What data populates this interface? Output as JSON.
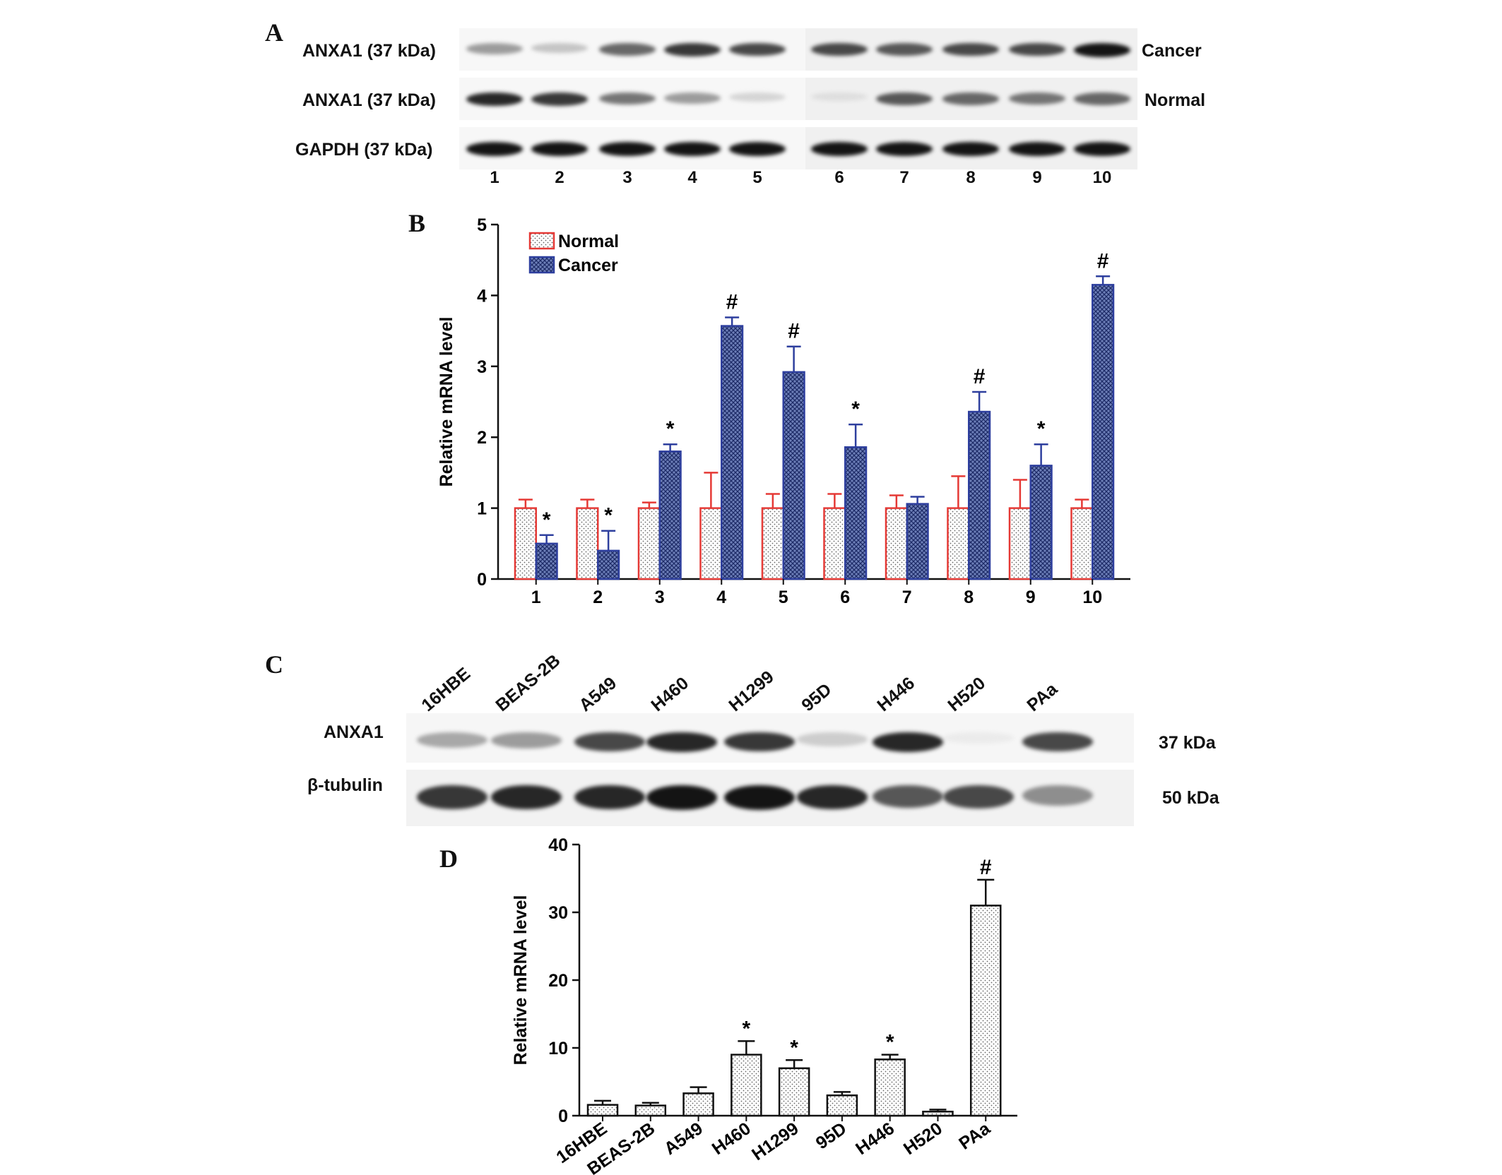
{
  "panelA": {
    "letter": "A",
    "rows": [
      {
        "label": "ANXA1 (37 kDa)",
        "side": "Cancer",
        "intensity": [
          0.55,
          0.35,
          0.75,
          0.9,
          0.85,
          0.85,
          0.8,
          0.85,
          0.85,
          1.0
        ]
      },
      {
        "label": "ANXA1 (37 kDa)",
        "side": "Normal",
        "intensity": [
          0.95,
          0.9,
          0.7,
          0.55,
          0.25,
          0.15,
          0.8,
          0.75,
          0.7,
          0.75
        ]
      },
      {
        "label": "GAPDH (37 kDa)",
        "side": "",
        "intensity": [
          1.0,
          1.0,
          1.0,
          1.0,
          1.0,
          1.0,
          1.0,
          1.0,
          1.0,
          1.0
        ]
      }
    ],
    "lanes": [
      "1",
      "2",
      "3",
      "4",
      "5",
      "6",
      "7",
      "8",
      "9",
      "10"
    ]
  },
  "panelC": {
    "letter": "C",
    "cell_lines": [
      "16HBE",
      "BEAS-2B",
      "A549",
      "H460",
      "H1299",
      "95D",
      "H446",
      "H520",
      "PAa"
    ],
    "rows": [
      {
        "label": "ANXA1",
        "kda": "37 kDa",
        "intensity": [
          0.5,
          0.55,
          0.85,
          0.95,
          0.9,
          0.3,
          0.95,
          0.05,
          0.85
        ]
      },
      {
        "label": "β-tubulin",
        "kda": "50 kDa",
        "intensity": [
          0.9,
          0.95,
          0.95,
          1.0,
          1.0,
          0.95,
          0.8,
          0.85,
          0.6
        ]
      }
    ]
  },
  "chart_data": [
    {
      "panel": "B",
      "type": "bar",
      "categories": [
        "1",
        "2",
        "3",
        "4",
        "5",
        "6",
        "7",
        "8",
        "9",
        "10"
      ],
      "series": [
        {
          "name": "Normal",
          "values": [
            1,
            1,
            1,
            1,
            1,
            1,
            1,
            1,
            1,
            1
          ],
          "errors": [
            0.12,
            0.12,
            0.08,
            0.5,
            0.2,
            0.2,
            0.18,
            0.45,
            0.4,
            0.12
          ],
          "color": "#e53935",
          "pattern": "dots"
        },
        {
          "name": "Cancer",
          "values": [
            0.5,
            0.4,
            1.8,
            3.57,
            2.92,
            1.86,
            1.06,
            2.36,
            1.6,
            4.15
          ],
          "errors": [
            0.12,
            0.28,
            0.1,
            0.12,
            0.36,
            0.32,
            0.1,
            0.28,
            0.3,
            0.12
          ],
          "color": "#2e3f9e",
          "pattern": "crosshatch"
        }
      ],
      "annotations": [
        "*",
        "*",
        "*",
        "#",
        "#",
        "*",
        "",
        "#",
        "*",
        "#"
      ],
      "ylabel": "Relative mRNA level",
      "xlabel": "",
      "ylim": [
        0,
        5
      ],
      "yticks": [
        "0",
        "1",
        "2",
        "3",
        "4",
        "5"
      ],
      "legend": "top-left",
      "grid": false
    },
    {
      "panel": "D",
      "type": "bar",
      "categories": [
        "16HBE",
        "BEAS-2B",
        "A549",
        "H460",
        "H1299",
        "95D",
        "H446",
        "H520",
        "PAa"
      ],
      "series": [
        {
          "name": "",
          "values": [
            1.6,
            1.5,
            3.3,
            9.0,
            7.0,
            3.0,
            8.3,
            0.6,
            31.0
          ],
          "errors": [
            0.6,
            0.4,
            0.9,
            2.0,
            1.2,
            0.5,
            0.7,
            0.3,
            3.8
          ],
          "color": "#111111",
          "pattern": "dots"
        }
      ],
      "annotations": [
        "",
        "",
        "",
        "*",
        "*",
        "",
        "*",
        "",
        "#"
      ],
      "ylabel": "Relative mRNA level",
      "xlabel": "",
      "ylim": [
        0,
        40
      ],
      "yticks": [
        "0",
        "10",
        "20",
        "30",
        "40"
      ],
      "legend": "none",
      "grid": false
    }
  ]
}
